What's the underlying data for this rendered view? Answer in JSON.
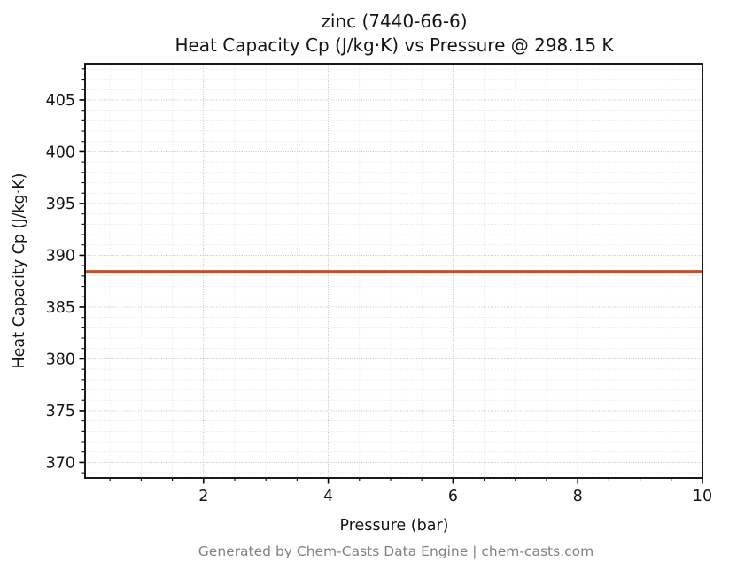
{
  "page": {
    "background": "#ffffff"
  },
  "chart_data": {
    "type": "line",
    "title": "zinc (7440-66-6)",
    "subtitle": "Heat Capacity Cp (J/kg·K) vs Pressure @ 298.15 K",
    "xlabel": "Pressure (bar)",
    "ylabel": "Heat Capacity Cp (J/kg·K)",
    "footer": "Generated by Chem-Casts Data Engine | chem-casts.com",
    "xlim": [
      0.1,
      10
    ],
    "ylim": [
      368.5,
      408.5
    ],
    "xticks": [
      2,
      4,
      6,
      8,
      10
    ],
    "yticks": [
      370,
      375,
      380,
      385,
      390,
      395,
      400,
      405
    ],
    "x_minor_step": 0.5,
    "y_minor_step": 1,
    "grid": true,
    "legend": "none",
    "series": [
      {
        "name": "Heat Capacity Cp",
        "color": "#cf4a1d",
        "line_width": 4,
        "x": [
          0.1,
          10
        ],
        "y": [
          388.4,
          388.4
        ]
      }
    ]
  }
}
